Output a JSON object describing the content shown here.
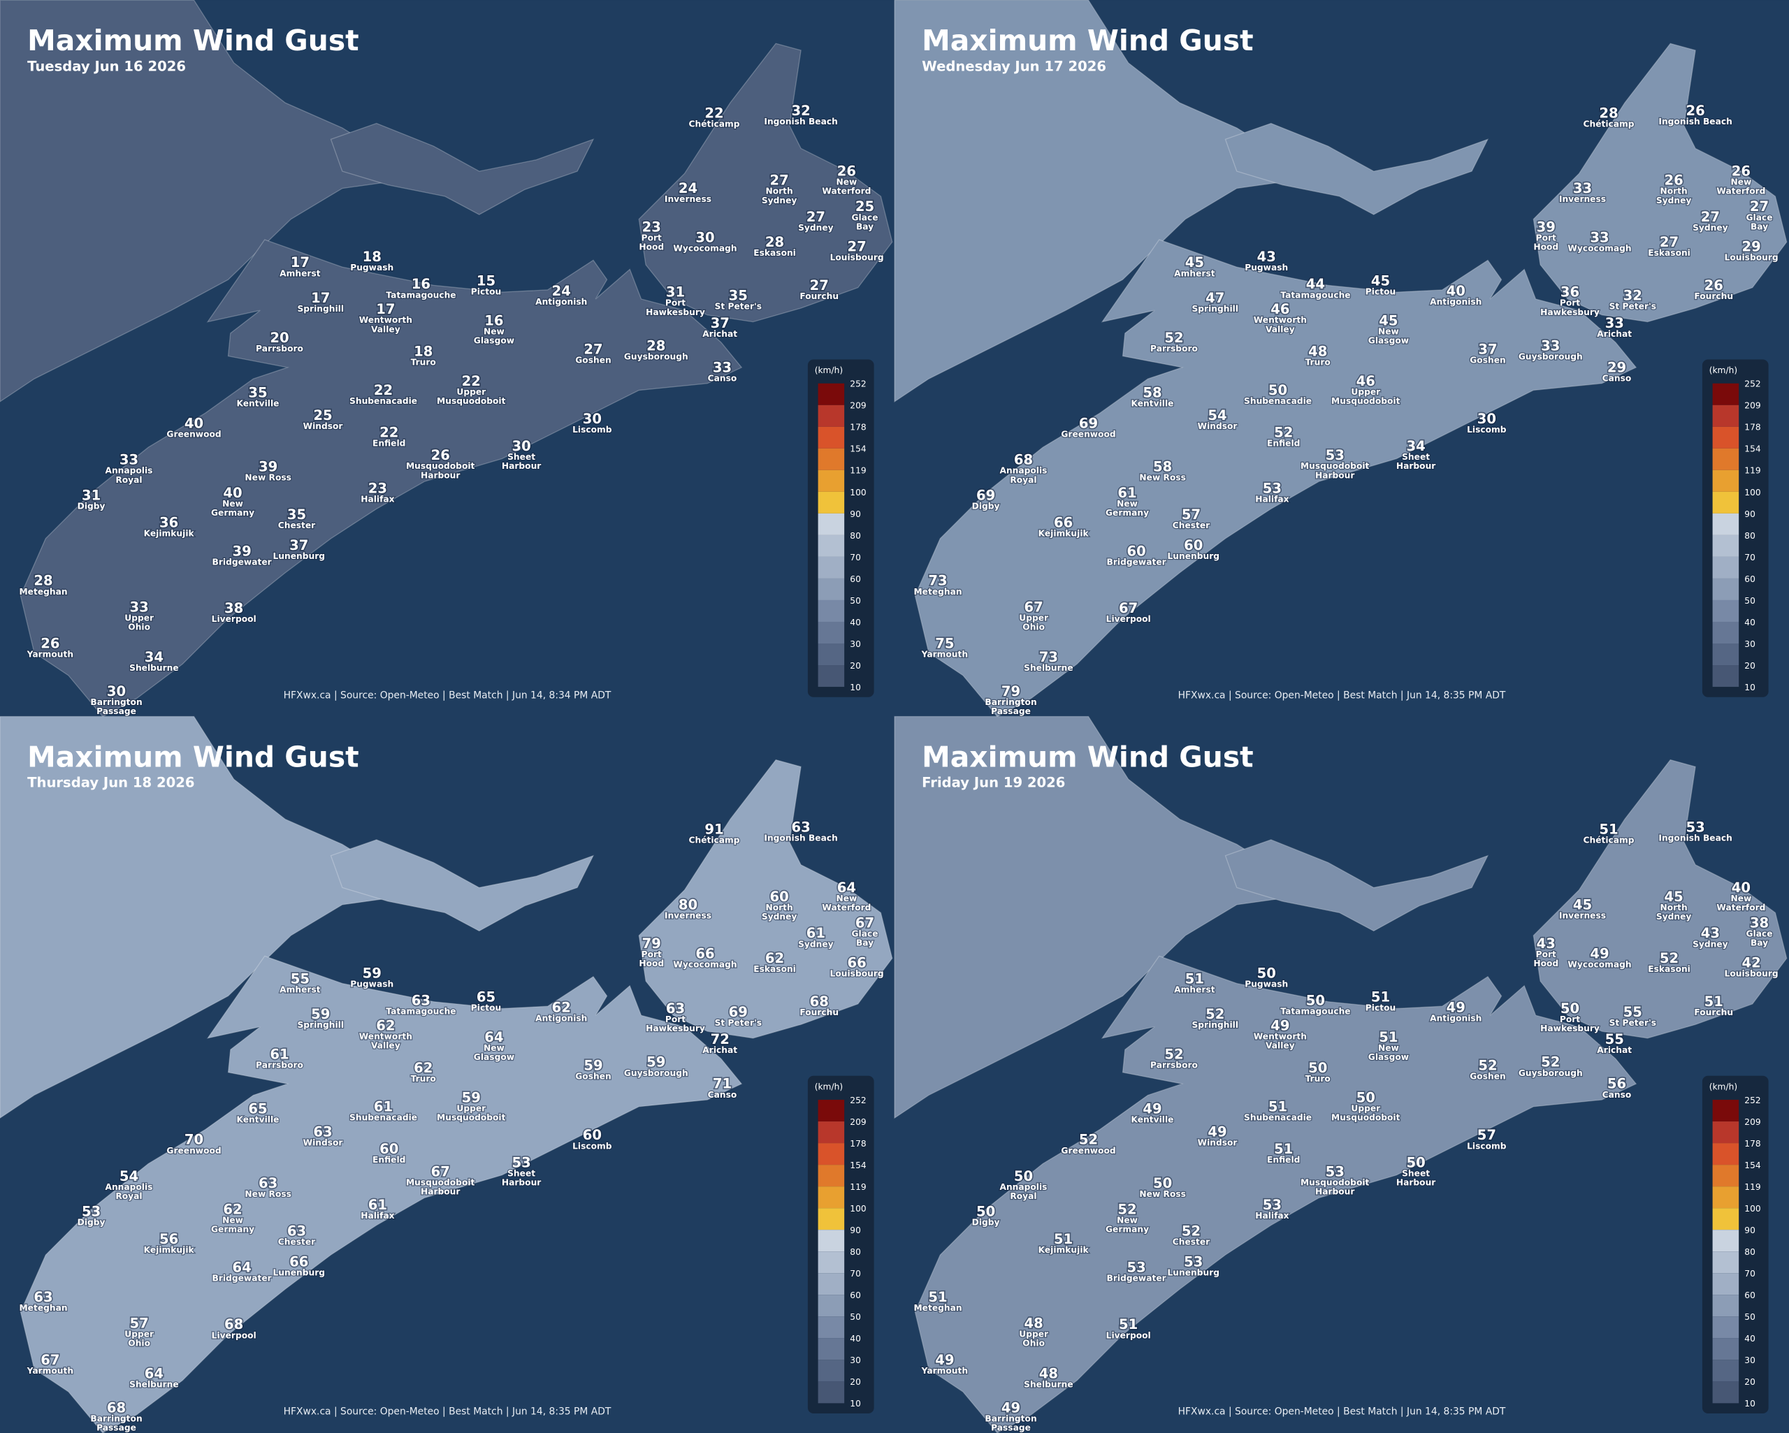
{
  "stations": [
    {
      "name": [
        "Chéticamp"
      ]
    },
    {
      "name": [
        "Ingonish Beach"
      ]
    },
    {
      "name": [
        "Inverness"
      ]
    },
    {
      "name": [
        "North",
        "Sydney"
      ]
    },
    {
      "name": [
        "New",
        "Waterford"
      ]
    },
    {
      "name": [
        "Glace",
        "Bay"
      ]
    },
    {
      "name": [
        "Sydney"
      ]
    },
    {
      "name": [
        "Port",
        "Hood"
      ]
    },
    {
      "name": [
        "Wycocomagh"
      ]
    },
    {
      "name": [
        "Eskasoni"
      ]
    },
    {
      "name": [
        "Louisbourg"
      ]
    },
    {
      "name": [
        "Fourchu"
      ]
    },
    {
      "name": [
        "Amherst"
      ]
    },
    {
      "name": [
        "Pugwash"
      ]
    },
    {
      "name": [
        "Tatamagouche"
      ]
    },
    {
      "name": [
        "Pictou"
      ]
    },
    {
      "name": [
        "Antigonish"
      ]
    },
    {
      "name": [
        "Springhill"
      ]
    },
    {
      "name": [
        "Wentworth",
        "Valley"
      ]
    },
    {
      "name": [
        "New",
        "Glasgow"
      ]
    },
    {
      "name": [
        "Port",
        "Hawkesbury"
      ]
    },
    {
      "name": [
        "St Peter's"
      ]
    },
    {
      "name": [
        "Arichat"
      ]
    },
    {
      "name": [
        "Parrsboro"
      ]
    },
    {
      "name": [
        "Truro"
      ]
    },
    {
      "name": [
        "Goshen"
      ]
    },
    {
      "name": [
        "Guysborough"
      ]
    },
    {
      "name": [
        "Canso"
      ]
    },
    {
      "name": [
        "Kentville"
      ]
    },
    {
      "name": [
        "Shubenacadie"
      ]
    },
    {
      "name": [
        "Upper",
        "Musquodoboit"
      ]
    },
    {
      "name": [
        "Windsor"
      ]
    },
    {
      "name": [
        "Enfield"
      ]
    },
    {
      "name": [
        "Liscomb"
      ]
    },
    {
      "name": [
        "Greenwood"
      ]
    },
    {
      "name": [
        "Musquodoboit",
        "Harbour"
      ]
    },
    {
      "name": [
        "Sheet",
        "Harbour"
      ]
    },
    {
      "name": [
        "Annapolis",
        "Royal"
      ]
    },
    {
      "name": [
        "New Ross"
      ]
    },
    {
      "name": [
        "Digby"
      ]
    },
    {
      "name": [
        "New",
        "Germany"
      ]
    },
    {
      "name": [
        "Halifax"
      ]
    },
    {
      "name": [
        "Kejimkujik"
      ]
    },
    {
      "name": [
        "Chester"
      ]
    },
    {
      "name": [
        "Lunenburg"
      ]
    },
    {
      "name": [
        "Bridgewater"
      ]
    },
    {
      "name": [
        "Meteghan"
      ]
    },
    {
      "name": [
        "Upper",
        "Ohio"
      ]
    },
    {
      "name": [
        "Liverpool"
      ]
    },
    {
      "name": [
        "Yarmouth"
      ]
    },
    {
      "name": [
        "Shelburne"
      ]
    },
    {
      "name": [
        "Barrington",
        "Passage"
      ]
    }
  ],
  "legend": {
    "unit": "(km/h)",
    "ticks": [
      252,
      209,
      178,
      154,
      119,
      100,
      90,
      80,
      70,
      60,
      50,
      40,
      30,
      20,
      10
    ]
  },
  "panels": [
    {
      "title": "Maximum Wind Gust",
      "date": "Tuesday Jun 16 2026",
      "footer": "HFXwx.ca | Source: Open-Meteo | Best Match | Jun 14, 8:34 PM ADT",
      "gusts": [
        22,
        32,
        24,
        27,
        26,
        25,
        27,
        23,
        30,
        28,
        27,
        27,
        17,
        18,
        16,
        15,
        24,
        17,
        17,
        16,
        31,
        35,
        37,
        20,
        18,
        27,
        28,
        33,
        35,
        22,
        22,
        25,
        22,
        30,
        40,
        26,
        30,
        33,
        39,
        31,
        40,
        23,
        36,
        35,
        37,
        39,
        28,
        33,
        38,
        26,
        34,
        30
      ]
    },
    {
      "title": "Maximum Wind Gust",
      "date": "Wednesday Jun 17 2026",
      "footer": "HFXwx.ca | Source: Open-Meteo | Best Match | Jun 14, 8:35 PM ADT",
      "gusts": [
        28,
        26,
        33,
        26,
        26,
        27,
        27,
        39,
        33,
        27,
        29,
        26,
        45,
        43,
        44,
        45,
        40,
        47,
        46,
        45,
        36,
        32,
        33,
        52,
        48,
        37,
        33,
        29,
        58,
        50,
        46,
        54,
        52,
        30,
        69,
        53,
        34,
        68,
        58,
        69,
        61,
        53,
        66,
        57,
        60,
        60,
        73,
        67,
        67,
        75,
        73,
        79
      ]
    },
    {
      "title": "Maximum Wind Gust",
      "date": "Thursday Jun 18 2026",
      "footer": "HFXwx.ca | Source: Open-Meteo | Best Match | Jun 14, 8:35 PM ADT",
      "gusts": [
        91,
        63,
        80,
        60,
        64,
        67,
        61,
        79,
        66,
        62,
        66,
        68,
        55,
        59,
        63,
        65,
        62,
        59,
        62,
        64,
        63,
        69,
        72,
        61,
        62,
        59,
        59,
        71,
        65,
        61,
        59,
        63,
        60,
        60,
        70,
        67,
        53,
        54,
        63,
        53,
        62,
        61,
        56,
        63,
        66,
        64,
        63,
        57,
        68,
        67,
        64,
        68
      ]
    },
    {
      "title": "Maximum Wind Gust",
      "date": "Friday Jun 19 2026",
      "footer": "HFXwx.ca | Source: Open-Meteo | Best Match | Jun 14, 8:35 PM ADT",
      "gusts": [
        51,
        53,
        45,
        45,
        40,
        38,
        43,
        43,
        49,
        52,
        42,
        51,
        51,
        50,
        50,
        51,
        49,
        52,
        49,
        51,
        50,
        55,
        55,
        52,
        50,
        52,
        52,
        56,
        49,
        51,
        50,
        49,
        51,
        57,
        52,
        53,
        50,
        50,
        50,
        50,
        52,
        53,
        51,
        52,
        53,
        53,
        51,
        48,
        51,
        49,
        48,
        49
      ]
    }
  ]
}
